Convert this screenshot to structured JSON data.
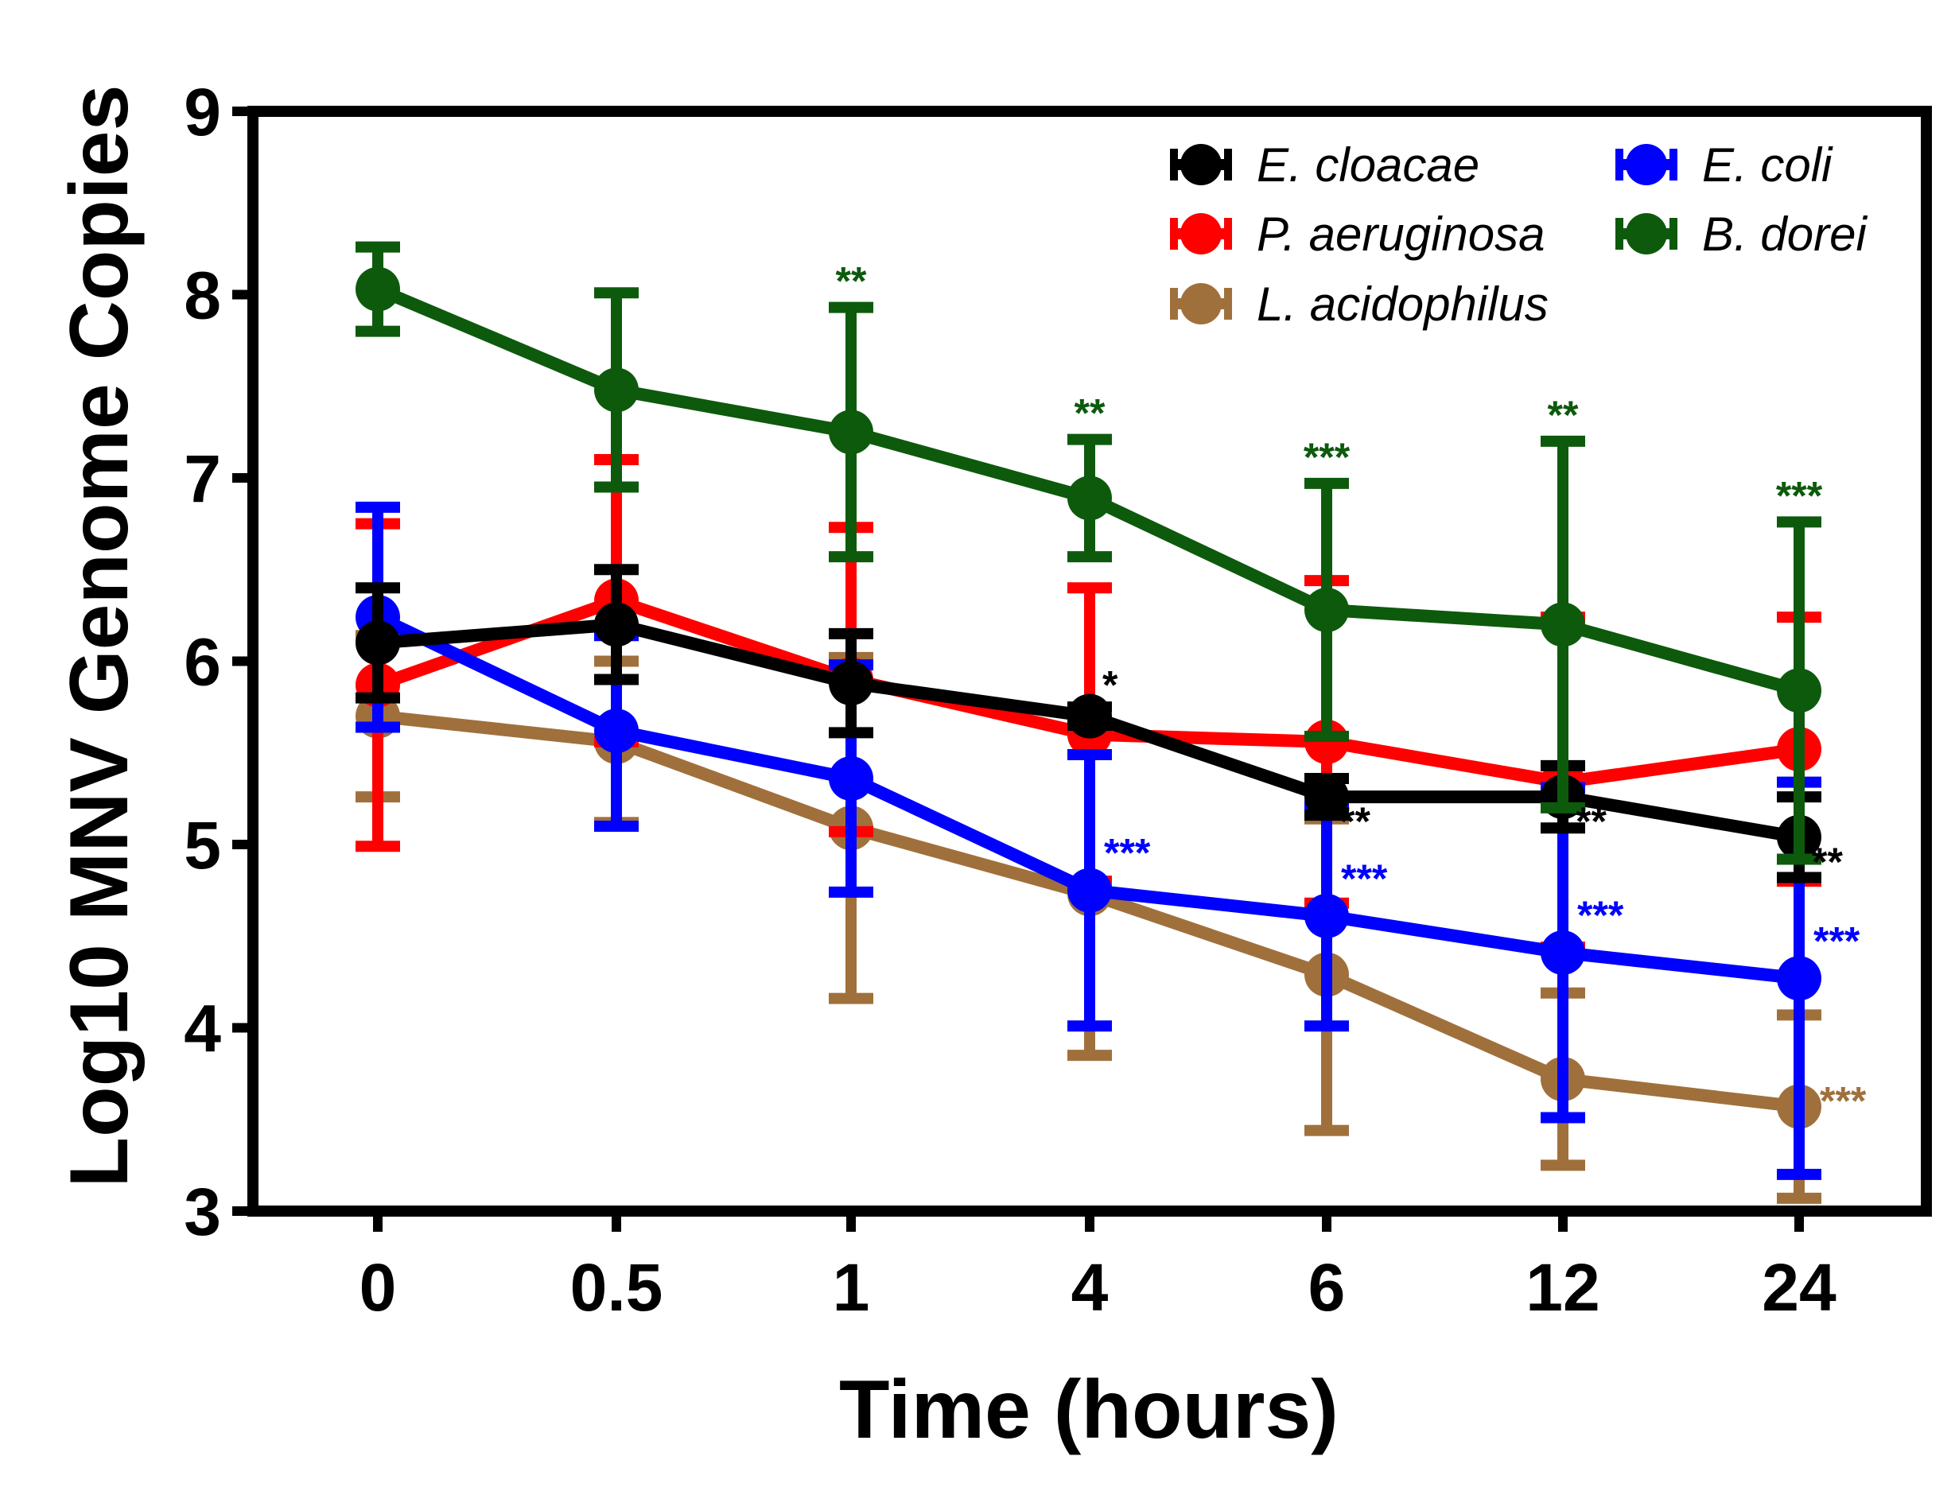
{
  "chart_data": {
    "type": "line",
    "title": "",
    "xlabel": "Time (hours)",
    "ylabel": "Log10 MNV Genome Copies",
    "categories": [
      "0",
      "0.5",
      "1",
      "4",
      "6",
      "12",
      "24"
    ],
    "ylim": [
      3,
      9
    ],
    "yticks": [
      "3",
      "4",
      "5",
      "6",
      "7",
      "8",
      "9"
    ],
    "grid": false,
    "legend_position": "top-right",
    "series": [
      {
        "name": "E. cloacae",
        "color": "#000000",
        "values": [
          6.1,
          6.2,
          5.88,
          5.7,
          5.26,
          5.26,
          5.04
        ],
        "error": [
          0.3,
          0.3,
          0.27,
          0.05,
          0.1,
          0.17,
          0.22
        ],
        "sig": [
          "",
          "",
          "",
          "*",
          "**",
          "**",
          "**"
        ]
      },
      {
        "name": "P. aeruginosa",
        "color": "#ff0000",
        "values": [
          5.87,
          6.33,
          5.9,
          5.6,
          5.56,
          5.34,
          5.52
        ],
        "error": [
          0.88,
          0.77,
          0.83,
          0.8,
          0.88,
          0.9,
          0.72
        ],
        "sig": [
          "",
          "",
          "",
          "",
          "",
          "",
          ""
        ]
      },
      {
        "name": "L. acidophilus",
        "color": "#a0703c",
        "values": [
          5.7,
          5.56,
          5.09,
          4.73,
          4.29,
          3.72,
          3.57
        ],
        "error": [
          0.44,
          0.44,
          0.93,
          0.88,
          0.85,
          0.47,
          0.5
        ],
        "sig": [
          "",
          "",
          "",
          "",
          "",
          "",
          "***"
        ]
      },
      {
        "name": "E. coli",
        "color": "#0000ff",
        "values": [
          6.24,
          5.62,
          5.36,
          4.75,
          4.61,
          4.41,
          4.27
        ],
        "error": [
          0.6,
          0.52,
          0.62,
          0.74,
          0.6,
          0.9,
          1.07
        ],
        "sig": [
          "",
          "",
          "",
          "***",
          "***",
          "***",
          "***"
        ]
      },
      {
        "name": "B. dorei",
        "color": "#0d5a0d",
        "values": [
          8.03,
          7.48,
          7.25,
          6.89,
          6.28,
          6.2,
          5.84
        ],
        "error": [
          0.23,
          0.53,
          0.68,
          0.32,
          0.69,
          1.0,
          0.92
        ],
        "sig": [
          "",
          "",
          "**",
          "**",
          "***",
          "**",
          "***"
        ]
      }
    ]
  }
}
